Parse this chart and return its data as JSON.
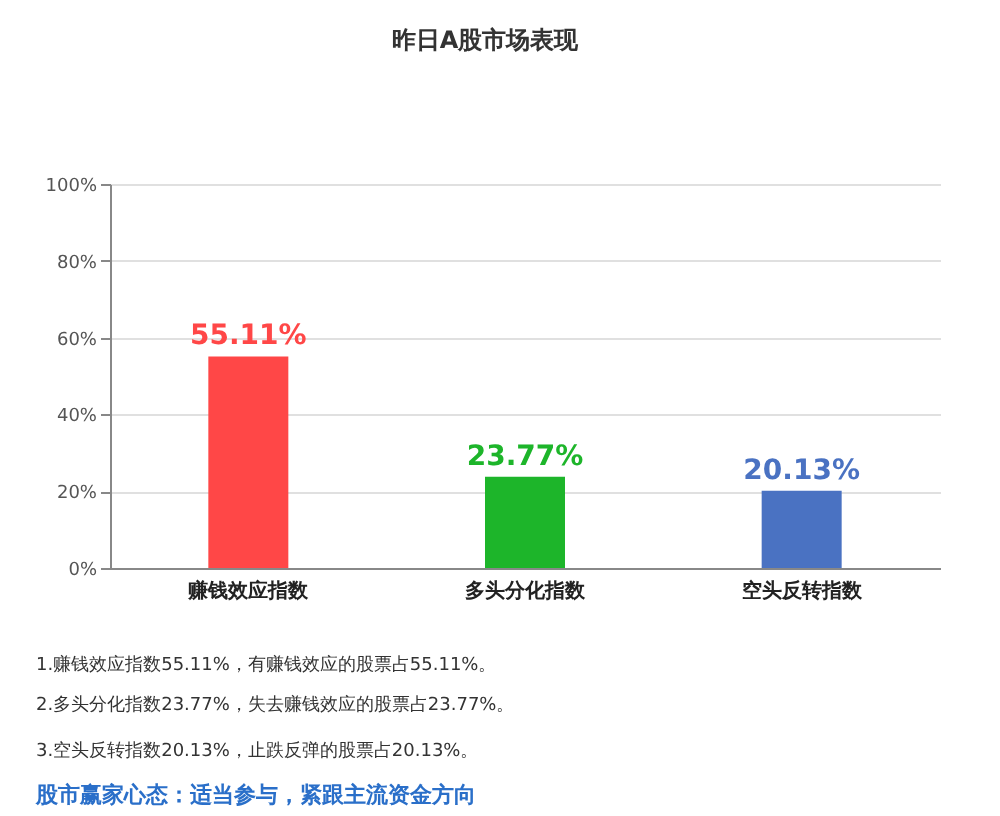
{
  "chart_data": {
    "type": "bar",
    "title": "昨日A股市场表现",
    "categories": [
      "赚钱效应指数",
      "多头分化指数",
      "空头反转指数"
    ],
    "values": [
      55.11,
      23.77,
      20.13
    ],
    "colors": [
      "#ff4747",
      "#1db52a",
      "#4a72c2"
    ],
    "value_labels": [
      "55.11%",
      "23.77%",
      "20.13%"
    ],
    "ylim": [
      0,
      100
    ],
    "yticks": [
      {
        "value": 0,
        "label": "0%"
      },
      {
        "value": 20,
        "label": "20%"
      },
      {
        "value": 40,
        "label": "40%"
      },
      {
        "value": 60,
        "label": "60%"
      },
      {
        "value": 80,
        "label": "80%"
      },
      {
        "value": 100,
        "label": "100%"
      }
    ],
    "grid": "y",
    "annotations": [
      "1.赚钱效应指数55.11%，有赚钱效应的股票占55.11%。",
      "2.多头分化指数23.77%，失去赚钱效应的股票占23.77%。",
      "3.空头反转指数20.13%，止跌反弹的股票占20.13%。",
      "股市赢家心态：适当参与，紧跟主流资金方向"
    ]
  }
}
